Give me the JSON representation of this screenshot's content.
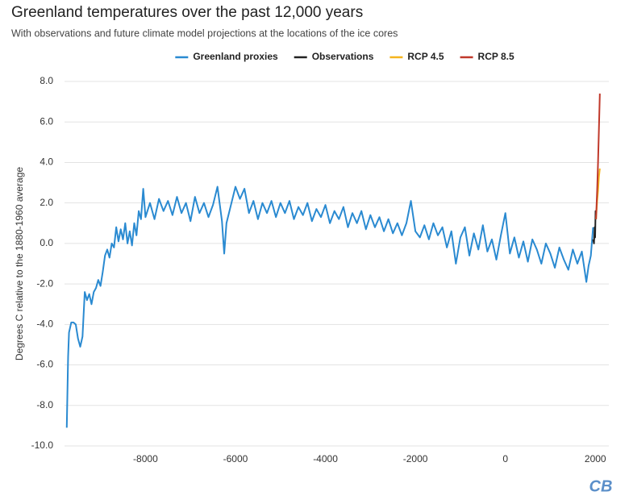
{
  "chart_data": {
    "type": "line",
    "title": "Greenland temperatures over the past 12,000 years",
    "subtitle": "With observations and future climate model projections at the locations of the ice cores",
    "y_label": "Degrees C relative to the 1880-1960 average",
    "logo": "CB",
    "grid": "y",
    "legend": "top",
    "xlim": [
      -9800,
      2300
    ],
    "ylim": [
      -10,
      8
    ],
    "xticks": [
      -8000,
      -6000,
      -4000,
      -2000,
      0,
      2000
    ],
    "yticks": [
      {
        "value": -10,
        "label": "-10.0"
      },
      {
        "value": -8,
        "label": "-8.0"
      },
      {
        "value": -6,
        "label": "-6.0"
      },
      {
        "value": -4,
        "label": "-4.0"
      },
      {
        "value": -2,
        "label": "-2.0"
      },
      {
        "value": 0,
        "label": "0.0"
      },
      {
        "value": 2,
        "label": "2.0"
      },
      {
        "value": 4,
        "label": "4.0"
      },
      {
        "value": 6,
        "label": "6.0"
      },
      {
        "value": 8,
        "label": "8.0"
      }
    ],
    "series": [
      {
        "name": "Greenland proxies",
        "color": "#2a8ad1",
        "x": [
          -9750,
          -9720,
          -9700,
          -9650,
          -9600,
          -9550,
          -9500,
          -9450,
          -9400,
          -9350,
          -9300,
          -9250,
          -9200,
          -9150,
          -9100,
          -9050,
          -9000,
          -8950,
          -8900,
          -8850,
          -8800,
          -8750,
          -8700,
          -8650,
          -8600,
          -8550,
          -8500,
          -8450,
          -8400,
          -8350,
          -8300,
          -8250,
          -8200,
          -8150,
          -8100,
          -8050,
          -8000,
          -7900,
          -7800,
          -7700,
          -7600,
          -7500,
          -7400,
          -7300,
          -7200,
          -7100,
          -7000,
          -6900,
          -6800,
          -6700,
          -6600,
          -6500,
          -6400,
          -6300,
          -6250,
          -6200,
          -6100,
          -6000,
          -5900,
          -5800,
          -5700,
          -5600,
          -5500,
          -5400,
          -5300,
          -5200,
          -5100,
          -5000,
          -4900,
          -4800,
          -4700,
          -4600,
          -4500,
          -4400,
          -4300,
          -4200,
          -4100,
          -4000,
          -3900,
          -3800,
          -3700,
          -3600,
          -3500,
          -3400,
          -3300,
          -3200,
          -3100,
          -3000,
          -2900,
          -2800,
          -2700,
          -2600,
          -2500,
          -2400,
          -2300,
          -2200,
          -2100,
          -2000,
          -1900,
          -1800,
          -1700,
          -1600,
          -1500,
          -1400,
          -1300,
          -1200,
          -1100,
          -1000,
          -900,
          -800,
          -700,
          -600,
          -500,
          -400,
          -300,
          -200,
          -100,
          0,
          100,
          200,
          300,
          400,
          500,
          600,
          700,
          800,
          900,
          1000,
          1100,
          1200,
          1300,
          1400,
          1500,
          1600,
          1700,
          1800,
          1850,
          1900,
          1950
        ],
        "values": [
          -9.1,
          -5.6,
          -4.4,
          -3.9,
          -3.9,
          -4.0,
          -4.7,
          -5.1,
          -4.6,
          -2.4,
          -2.8,
          -2.5,
          -3.0,
          -2.4,
          -2.2,
          -1.8,
          -2.1,
          -1.4,
          -0.6,
          -0.3,
          -0.7,
          0.0,
          -0.2,
          0.8,
          0.1,
          0.7,
          0.2,
          1.0,
          0.0,
          0.6,
          -0.1,
          1.0,
          0.4,
          1.6,
          1.2,
          2.7,
          1.3,
          2.0,
          1.2,
          2.2,
          1.6,
          2.1,
          1.4,
          2.3,
          1.5,
          2.0,
          1.1,
          2.3,
          1.5,
          2.0,
          1.3,
          1.9,
          2.8,
          1.1,
          -0.5,
          1.0,
          1.9,
          2.8,
          2.2,
          2.7,
          1.5,
          2.1,
          1.2,
          2.0,
          1.5,
          2.1,
          1.3,
          2.0,
          1.5,
          2.1,
          1.2,
          1.8,
          1.4,
          2.0,
          1.1,
          1.7,
          1.3,
          1.9,
          1.0,
          1.6,
          1.2,
          1.8,
          0.8,
          1.5,
          1.0,
          1.6,
          0.7,
          1.4,
          0.8,
          1.3,
          0.6,
          1.2,
          0.5,
          1.0,
          0.4,
          1.0,
          2.1,
          0.6,
          0.3,
          0.9,
          0.2,
          1.0,
          0.4,
          0.8,
          -0.2,
          0.6,
          -1.0,
          0.3,
          0.8,
          -0.6,
          0.5,
          -0.3,
          0.9,
          -0.4,
          0.2,
          -0.8,
          0.4,
          1.5,
          -0.5,
          0.3,
          -0.7,
          0.1,
          -0.9,
          0.2,
          -0.3,
          -1.0,
          0.0,
          -0.5,
          -1.2,
          -0.2,
          -0.8,
          -1.3,
          -0.3,
          -1.0,
          -0.4,
          -1.9,
          -1.1,
          -0.6,
          0.8
        ]
      },
      {
        "name": "Observations",
        "color": "#222222",
        "x": [
          1950,
          1970,
          1985,
          1995,
          2005,
          2015
        ],
        "values": [
          0.2,
          0.0,
          0.8,
          0.3,
          1.6,
          1.2
        ]
      },
      {
        "name": "RCP 4.5",
        "color": "#f5b41e",
        "x": [
          2015,
          2040,
          2060,
          2080,
          2100
        ],
        "values": [
          1.2,
          2.1,
          2.6,
          3.3,
          3.7
        ]
      },
      {
        "name": "RCP 8.5",
        "color": "#c0392b",
        "x": [
          2015,
          2040,
          2060,
          2080,
          2100
        ],
        "values": [
          1.2,
          2.6,
          4.0,
          5.7,
          7.4
        ]
      }
    ]
  }
}
